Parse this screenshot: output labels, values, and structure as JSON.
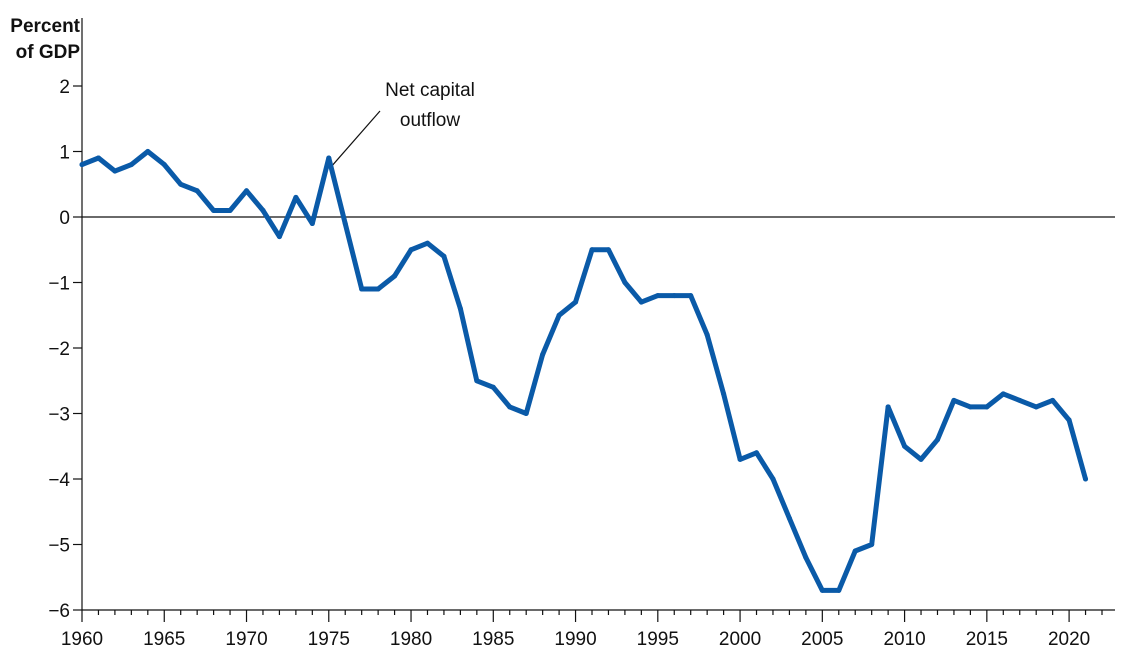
{
  "chart_data": {
    "type": "line",
    "ylabel_line1": "Percent",
    "ylabel_line2": "of GDP",
    "annotation_line1": "Net capital",
    "annotation_line2": "outflow",
    "ylim": [
      -6,
      2
    ],
    "yticks": [
      2,
      1,
      0,
      -1,
      -2,
      -3,
      -4,
      -5,
      -6
    ],
    "ytick_labels": [
      "2",
      "1",
      "0",
      "−1",
      "−2",
      "−3",
      "−4",
      "−5",
      "−6"
    ],
    "xlim": [
      1960,
      2022
    ],
    "xticks": [
      1960,
      1965,
      1970,
      1975,
      1980,
      1985,
      1990,
      1995,
      2000,
      2005,
      2010,
      2015,
      2020
    ],
    "xtick_labels": [
      "1960",
      "1965",
      "1970",
      "1975",
      "1980",
      "1985",
      "1990",
      "1995",
      "2000",
      "2005",
      "2010",
      "2015",
      "2020"
    ],
    "zero_line": true,
    "grid": false,
    "line_color": "#0a5aa8",
    "annotation_points_to": {
      "x": 1975,
      "y": 0.9
    },
    "series": [
      {
        "x": [
          1960,
          1961,
          1962,
          1963,
          1964,
          1965,
          1966,
          1967,
          1968,
          1969,
          1970,
          1971,
          1972,
          1973,
          1974,
          1975,
          1976,
          1977,
          1978,
          1979,
          1980,
          1981,
          1982,
          1983,
          1984,
          1985,
          1986,
          1987,
          1988,
          1989,
          1990,
          1991,
          1992,
          1993,
          1994,
          1995,
          1996,
          1997,
          1998,
          1999,
          2000,
          2001,
          2002,
          2003,
          2004,
          2005,
          2006,
          2007,
          2008,
          2009,
          2010,
          2011,
          2012,
          2013,
          2014,
          2015,
          2016,
          2017,
          2018,
          2019,
          2020,
          2021
        ],
        "values": [
          0.8,
          0.9,
          0.7,
          0.8,
          1.0,
          0.8,
          0.5,
          0.4,
          0.1,
          0.1,
          0.4,
          0.1,
          -0.3,
          0.3,
          -0.1,
          0.9,
          -0.1,
          -1.1,
          -1.1,
          -0.9,
          -0.5,
          -0.4,
          -0.6,
          -1.4,
          -2.5,
          -2.6,
          -2.9,
          -3.0,
          -2.1,
          -1.5,
          -1.3,
          -0.5,
          -0.5,
          -1.0,
          -1.3,
          -1.2,
          -1.2,
          -1.2,
          -1.8,
          -2.7,
          -3.7,
          -3.6,
          -4.0,
          -4.6,
          -5.2,
          -5.7,
          -5.7,
          -5.1,
          -5.0,
          -2.9,
          -3.5,
          -3.7,
          -3.4,
          -2.8,
          -2.9,
          -2.9,
          -2.7,
          -2.8,
          -2.9,
          -2.8,
          -3.1,
          -4.0
        ]
      }
    ]
  }
}
